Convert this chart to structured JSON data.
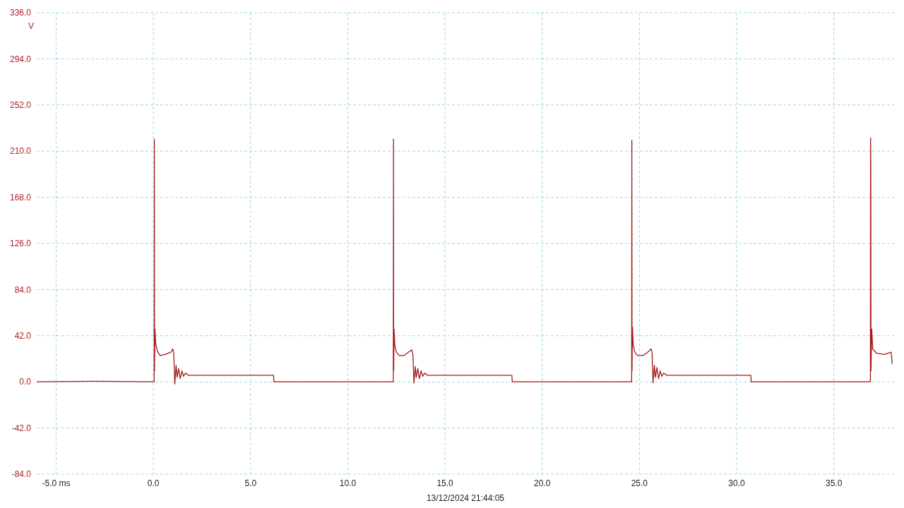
{
  "chart_data": {
    "type": "line",
    "xlabel": "13/12/2024 21:44:05",
    "ylabel": "V",
    "x": [
      -6,
      -3,
      0.04,
      0.05,
      0.06,
      0.08,
      0.12,
      0.2,
      0.35,
      0.6,
      0.9,
      1.0,
      1.05,
      1.1,
      1.17,
      1.22,
      1.3,
      1.38,
      1.47,
      1.55,
      1.65,
      1.8,
      3,
      5,
      6.18,
      6.2,
      9,
      12.34,
      12.35,
      12.36,
      12.38,
      12.42,
      12.5,
      12.65,
      12.9,
      13.2,
      13.3,
      13.35,
      13.4,
      13.47,
      13.52,
      13.6,
      13.68,
      13.77,
      13.85,
      13.95,
      14.1,
      16,
      18.44,
      18.46,
      21,
      24.6,
      24.61,
      24.62,
      24.64,
      24.68,
      24.76,
      24.9,
      25.2,
      25.5,
      25.6,
      25.65,
      25.7,
      25.77,
      25.82,
      25.9,
      25.98,
      26.07,
      26.15,
      26.25,
      26.4,
      28,
      30.73,
      30.75,
      34,
      36.88,
      36.89,
      36.9,
      36.91,
      36.95,
      37.0,
      37.2,
      37.6,
      37.95,
      38.0
    ],
    "series": [
      {
        "color": "#a31a1a",
        "values": [
          0,
          0.5,
          0,
          221,
          10,
          48,
          35,
          28,
          24,
          25,
          27,
          30,
          26,
          -2,
          15,
          4,
          12,
          3,
          10,
          5,
          8,
          6,
          6,
          6,
          6,
          0,
          0,
          0,
          221,
          10,
          48,
          33,
          27,
          24,
          24,
          28,
          29,
          25,
          -1,
          14,
          4,
          12,
          3,
          10,
          5,
          8,
          6,
          6,
          6,
          0,
          0,
          0,
          220,
          10,
          50,
          34,
          27,
          24,
          24,
          28,
          30,
          27,
          -1,
          15,
          4,
          13,
          3,
          10,
          5,
          8,
          6,
          6,
          6,
          0,
          0,
          0,
          222,
          195,
          10,
          48,
          30,
          26,
          25,
          27,
          16
        ]
      }
    ],
    "xlim": [
      -6,
      38.1
    ],
    "xticks": [
      {
        "value": -5,
        "label": "-5.0 ms"
      },
      {
        "value": 0,
        "label": "0.0"
      },
      {
        "value": 5,
        "label": "5.0"
      },
      {
        "value": 10,
        "label": "10.0"
      },
      {
        "value": 15,
        "label": "15.0"
      },
      {
        "value": 20,
        "label": "20.0"
      },
      {
        "value": 25,
        "label": "25.0"
      },
      {
        "value": 30,
        "label": "30.0"
      },
      {
        "value": 35,
        "label": "35.0"
      }
    ],
    "ylim": [
      -84,
      336
    ],
    "yticks": [
      {
        "value": -84,
        "label": "-84.0"
      },
      {
        "value": -42,
        "label": "-42.0"
      },
      {
        "value": 0,
        "label": "0.0"
      },
      {
        "value": 42,
        "label": "42.0"
      },
      {
        "value": 84,
        "label": "84.0"
      },
      {
        "value": 126,
        "label": "126.0"
      },
      {
        "value": 168,
        "label": "168.0"
      },
      {
        "value": 210,
        "label": "210.0"
      },
      {
        "value": 252,
        "label": "252.0"
      },
      {
        "value": 294,
        "label": "294.0"
      },
      {
        "value": 336,
        "label": "336.0"
      }
    ],
    "grid": true,
    "legend": false,
    "marker": "none",
    "line_style": "solid"
  }
}
